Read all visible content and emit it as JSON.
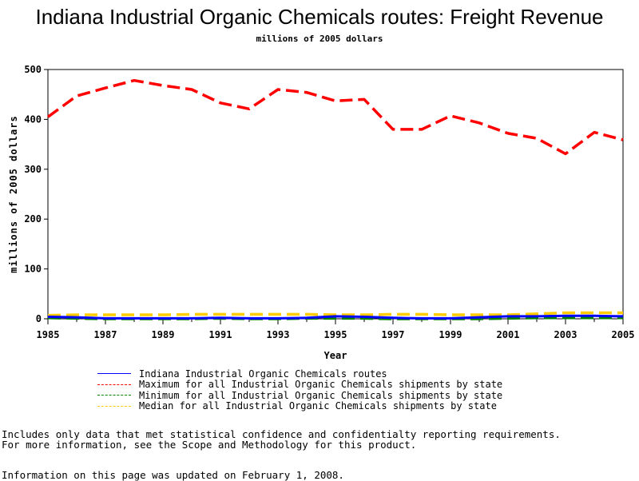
{
  "chart_data": {
    "type": "line",
    "title": "Indiana Industrial Organic Chemicals routes: Freight Revenue",
    "subtitle": "millions of 2005 dollars",
    "xlabel": "Year",
    "ylabel": "millions of 2005 dollars",
    "xlim": [
      1985,
      2005
    ],
    "ylim": [
      0,
      500
    ],
    "x_ticks": [
      "1985",
      "1987",
      "1989",
      "1991",
      "1993",
      "1995",
      "1997",
      "1999",
      "2001",
      "2003",
      "2005"
    ],
    "y_ticks": [
      "0",
      "100",
      "200",
      "300",
      "400",
      "500"
    ],
    "x": [
      1985,
      1986,
      1987,
      1988,
      1989,
      1990,
      1991,
      1992,
      1993,
      1994,
      1995,
      1996,
      1997,
      1998,
      1999,
      2000,
      2001,
      2002,
      2003,
      2004,
      2005
    ],
    "series": [
      {
        "name": "Indiana Industrial Organic Chemicals routes",
        "color": "#0000ff",
        "dash": "solid",
        "values": [
          4,
          3,
          1,
          1,
          1,
          1,
          2,
          1,
          1,
          2,
          5,
          4,
          2,
          1,
          1,
          3,
          5,
          5,
          6,
          6,
          5
        ]
      },
      {
        "name": "Maximum for all Industrial Organic Chemicals shipments by state",
        "color": "#ff0000",
        "dash": "dashed",
        "values": [
          405,
          447,
          463,
          478,
          468,
          460,
          433,
          421,
          460,
          454,
          437,
          440,
          380,
          380,
          407,
          393,
          372,
          362,
          331,
          374,
          359
        ]
      },
      {
        "name": "Minimum for all Industrial Organic Chemicals shipments by state",
        "color": "#008000",
        "dash": "dashed",
        "values": [
          2,
          1,
          0,
          0,
          0,
          0,
          1,
          0,
          0,
          1,
          1,
          1,
          0,
          0,
          0,
          0,
          1,
          2,
          2,
          2,
          2
        ]
      },
      {
        "name": "Median for all Industrial Organic Chemicals shipments by state",
        "color": "#ffcc00",
        "dash": "dashed",
        "values": [
          7,
          8,
          8,
          8,
          8,
          9,
          9,
          9,
          9,
          9,
          8,
          8,
          9,
          9,
          8,
          8,
          8,
          10,
          12,
          12,
          12
        ]
      }
    ],
    "grid": false,
    "legend_position": "bottom"
  },
  "notes": {
    "line1": "Includes only data that met statistical confidence and confidentialty reporting requirements.",
    "line2": "For more information, see the Scope and Methodology for this product.",
    "line3": "Information on this page was updated on February 1, 2008."
  }
}
